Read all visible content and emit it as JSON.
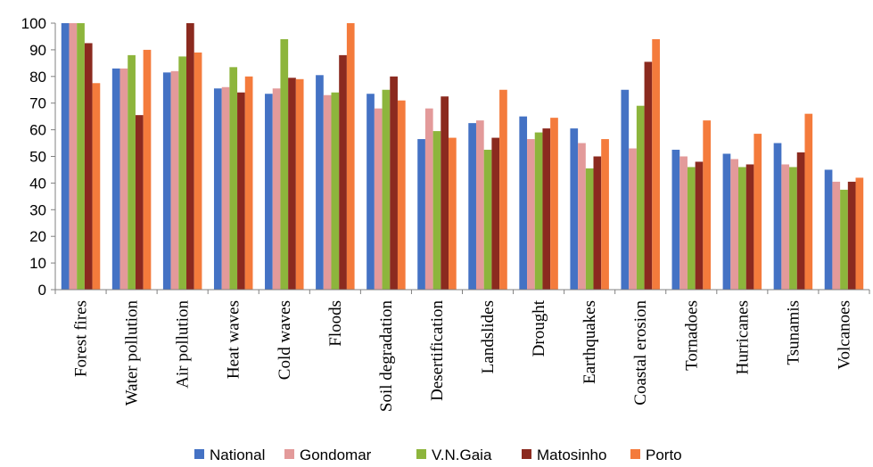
{
  "chart_data": {
    "type": "bar",
    "title": "",
    "xlabel": "",
    "ylabel": "",
    "ylim": [
      0,
      100
    ],
    "yticks": [
      0,
      10,
      20,
      30,
      40,
      50,
      60,
      70,
      80,
      90,
      100
    ],
    "grid": false,
    "legend_position": "bottom",
    "categories": [
      "Forest fires",
      "Water pollution",
      "Air pollution",
      "Heat waves",
      "Cold waves",
      "Floods",
      "Soil degradation",
      "Desertification",
      "Landslides",
      "Drought",
      "Earthquakes",
      "Coastal erosion",
      "Tornadoes",
      "Hurricanes",
      "Tsunamis",
      "Volcanoes"
    ],
    "series": [
      {
        "name": "National",
        "color": "#4472C4",
        "values": [
          100,
          83,
          81.5,
          75.5,
          73.5,
          80.5,
          73.5,
          56.5,
          62.5,
          65,
          60.5,
          75,
          52.5,
          51,
          55,
          45
        ]
      },
      {
        "name": "Gondomar",
        "color": "#E39A9A",
        "values": [
          100,
          83,
          82,
          76,
          75.5,
          73,
          68,
          68,
          63.5,
          56.5,
          55,
          53,
          50,
          49,
          47,
          40.5
        ]
      },
      {
        "name": "V.N.Gaia",
        "color": "#8DB53C",
        "values": [
          100,
          88,
          87.5,
          83.5,
          94,
          74,
          75,
          59.5,
          52.5,
          59,
          45.5,
          69,
          46,
          46,
          46,
          37.5
        ]
      },
      {
        "name": "Matosinho",
        "color": "#8B2A1F",
        "values": [
          92.5,
          65.5,
          100,
          74,
          79.5,
          88,
          80,
          72.5,
          57,
          60.5,
          50,
          85.5,
          48,
          47,
          51.5,
          40.5
        ]
      },
      {
        "name": "Porto",
        "color": "#F47B3C",
        "values": [
          77.5,
          90,
          89,
          80,
          79,
          100,
          71,
          57,
          75,
          64.5,
          56.5,
          94,
          63.5,
          58.5,
          66,
          42
        ]
      }
    ]
  }
}
